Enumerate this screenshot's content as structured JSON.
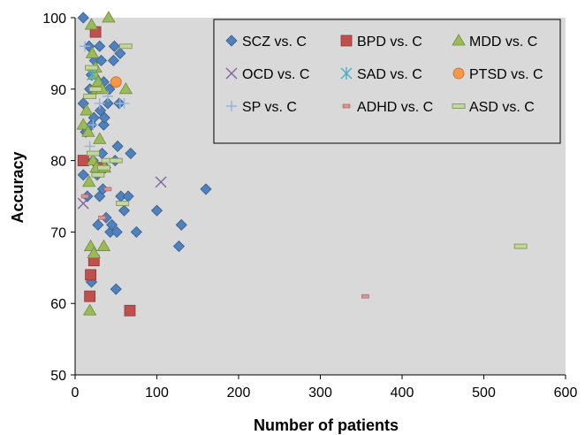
{
  "chart_data": {
    "type": "scatter",
    "xlabel": "Number of patients",
    "ylabel": "Accuracy",
    "xlim": [
      0,
      600
    ],
    "ylim": [
      50,
      100
    ],
    "xticks": [
      0,
      100,
      200,
      300,
      400,
      500,
      600
    ],
    "yticks": [
      50,
      60,
      70,
      80,
      90,
      100
    ],
    "grid": false,
    "legend_position": "top-right",
    "background": "#d9d9d9",
    "series": [
      {
        "name": "SCZ vs. C",
        "marker": "diamond",
        "color": "#4f81bd",
        "points": [
          [
            10,
            100
          ],
          [
            10,
            88
          ],
          [
            10,
            78
          ],
          [
            13,
            84
          ],
          [
            15,
            75
          ],
          [
            17,
            96
          ],
          [
            18,
            90
          ],
          [
            20,
            85
          ],
          [
            20,
            92
          ],
          [
            20,
            63
          ],
          [
            22,
            80
          ],
          [
            23,
            86
          ],
          [
            24,
            94
          ],
          [
            25,
            90
          ],
          [
            27,
            78
          ],
          [
            28,
            71
          ],
          [
            30,
            96
          ],
          [
            30,
            75
          ],
          [
            31,
            87
          ],
          [
            32,
            94
          ],
          [
            33,
            81
          ],
          [
            34,
            76
          ],
          [
            35,
            85
          ],
          [
            35,
            91
          ],
          [
            36,
            86
          ],
          [
            37,
            79
          ],
          [
            38,
            72
          ],
          [
            40,
            88
          ],
          [
            42,
            90
          ],
          [
            43,
            70
          ],
          [
            45,
            71
          ],
          [
            47,
            94
          ],
          [
            48,
            96
          ],
          [
            49,
            80
          ],
          [
            50,
            62
          ],
          [
            51,
            70
          ],
          [
            52,
            82
          ],
          [
            54,
            88
          ],
          [
            55,
            95
          ],
          [
            56,
            75
          ],
          [
            60,
            73
          ],
          [
            65,
            75
          ],
          [
            68,
            81
          ],
          [
            75,
            70
          ],
          [
            100,
            73
          ],
          [
            127,
            68
          ],
          [
            130,
            71
          ],
          [
            160,
            76
          ]
        ]
      },
      {
        "name": "BPD vs. C",
        "marker": "square",
        "color": "#c0504d",
        "points": [
          [
            10,
            80
          ],
          [
            18,
            61
          ],
          [
            19,
            64
          ],
          [
            23,
            66
          ],
          [
            25,
            98
          ],
          [
            30,
            79
          ],
          [
            67,
            59
          ]
        ]
      },
      {
        "name": "MDD vs. C",
        "marker": "triangle",
        "color": "#9bbb59",
        "points": [
          [
            10,
            85
          ],
          [
            14,
            87
          ],
          [
            16,
            84
          ],
          [
            17,
            77
          ],
          [
            18,
            59
          ],
          [
            19,
            68
          ],
          [
            20,
            99
          ],
          [
            21,
            95
          ],
          [
            22,
            80
          ],
          [
            23,
            67
          ],
          [
            24,
            92
          ],
          [
            25,
            93
          ],
          [
            26,
            79
          ],
          [
            27,
            90
          ],
          [
            28,
            91
          ],
          [
            30,
            83
          ],
          [
            33,
            90
          ],
          [
            35,
            68
          ],
          [
            36,
            79
          ],
          [
            41,
            100
          ],
          [
            62,
            90
          ]
        ]
      },
      {
        "name": "OCD vs. C",
        "marker": "x",
        "color": "#8064a2",
        "points": [
          [
            10,
            74
          ],
          [
            105,
            77
          ]
        ]
      },
      {
        "name": "SAD vs. C",
        "marker": "asterisk",
        "color": "#4bacc6",
        "points": [
          [
            21,
            92
          ]
        ]
      },
      {
        "name": "PTSD vs. C",
        "marker": "circle",
        "color": "#f79646",
        "points": [
          [
            50,
            91
          ]
        ]
      },
      {
        "name": "SP vs. C",
        "marker": "plus",
        "color": "#95b3d7",
        "points": [
          [
            12,
            96
          ],
          [
            18,
            82
          ],
          [
            22,
            85
          ],
          [
            30,
            88
          ],
          [
            40,
            89
          ],
          [
            55,
            88
          ],
          [
            60,
            88
          ]
        ]
      },
      {
        "name": "ADHD vs. C",
        "marker": "dash",
        "color": "#d99694",
        "points": [
          [
            12,
            75
          ],
          [
            33,
            72
          ],
          [
            40,
            76
          ],
          [
            355,
            61
          ]
        ]
      },
      {
        "name": "ASD vs. C",
        "marker": "bar",
        "color": "#c3d69b",
        "points": [
          [
            18,
            89
          ],
          [
            20,
            93
          ],
          [
            22,
            81
          ],
          [
            25,
            90
          ],
          [
            28,
            78
          ],
          [
            35,
            79
          ],
          [
            40,
            80
          ],
          [
            50,
            80
          ],
          [
            58,
            74
          ],
          [
            62,
            96
          ],
          [
            545,
            68
          ]
        ]
      }
    ]
  }
}
